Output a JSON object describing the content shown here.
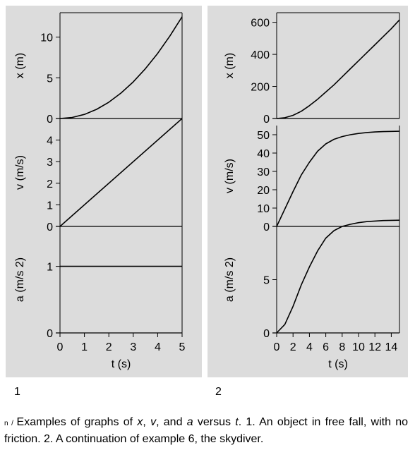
{
  "panels": [
    {
      "number": "1",
      "xlabel": "t (s)",
      "xticks": [
        0,
        1,
        2,
        3,
        4,
        5
      ],
      "xlim": [
        0,
        5
      ],
      "plots": [
        {
          "ylabel": "x (m)",
          "ylim": [
            0,
            13
          ],
          "yticks": [
            0,
            5,
            10
          ]
        },
        {
          "ylabel": "v (m/s)",
          "ylim": [
            0,
            5
          ],
          "yticks": [
            0,
            1,
            2,
            3,
            4
          ]
        },
        {
          "ylabel": "a (m/s 2)",
          "ylim": [
            0,
            1.6
          ],
          "yticks": [
            0,
            1
          ]
        }
      ]
    },
    {
      "number": "2",
      "xlabel": "t (s)",
      "xticks": [
        0,
        2,
        4,
        6,
        8,
        10,
        12,
        14
      ],
      "xlim": [
        0,
        15
      ],
      "plots": [
        {
          "ylabel": "x (m)",
          "ylim": [
            0,
            660
          ],
          "yticks": [
            0,
            200,
            400,
            600
          ]
        },
        {
          "ylabel": "v (m/s)",
          "ylim": [
            0,
            55
          ],
          "yticks": [
            0,
            10,
            20,
            30,
            40,
            50
          ]
        },
        {
          "ylabel": "a (m/s 2)",
          "ylim": [
            0,
            10
          ],
          "yticks": [
            0,
            5
          ]
        }
      ]
    }
  ],
  "caption": {
    "prefix": "n / ",
    "t1": "Examples of graphs of ",
    "v1": "x",
    "t2": ", ",
    "v2": "v",
    "t3": ", and ",
    "v3": "a",
    "t4": " versus ",
    "v4": "t",
    "t5": ". 1. An object in free fall, with no friction. 2. A continuation of example 6, the skydiver."
  },
  "chart_data": [
    {
      "type": "line",
      "panel": "1",
      "series": [
        {
          "name": "x (m)",
          "x": [
            0,
            0.5,
            1,
            1.5,
            2,
            2.5,
            3,
            3.5,
            4,
            4.5,
            5
          ],
          "y": [
            0,
            0.13,
            0.5,
            1.13,
            2,
            3.13,
            4.5,
            6.13,
            8,
            10.13,
            12.5
          ]
        },
        {
          "name": "v (m/s)",
          "x": [
            0,
            5
          ],
          "y": [
            0,
            5
          ]
        },
        {
          "name": "a (m/s 2)",
          "x": [
            0,
            5
          ],
          "y": [
            1,
            1
          ]
        }
      ]
    },
    {
      "type": "line",
      "panel": "2",
      "series": [
        {
          "name": "x (m)",
          "x": [
            0,
            1,
            2,
            3,
            4,
            5,
            6,
            7,
            8,
            9,
            10,
            11,
            12,
            13,
            14,
            15
          ],
          "y": [
            0,
            5,
            20,
            45,
            80,
            120,
            165,
            210,
            260,
            310,
            360,
            410,
            460,
            510,
            560,
            615
          ]
        },
        {
          "name": "v (m/s)",
          "x": [
            0,
            1,
            2,
            3,
            4,
            5,
            6,
            7,
            8,
            9,
            10,
            11,
            12,
            13,
            14,
            15
          ],
          "y": [
            0,
            9.5,
            19,
            28,
            35,
            41,
            45,
            47.5,
            49,
            50,
            50.7,
            51.2,
            51.5,
            51.7,
            51.8,
            51.9
          ]
        },
        {
          "name": "a (m/s 2)",
          "x": [
            0,
            1,
            2,
            3,
            4,
            5,
            6,
            7,
            8,
            9,
            10,
            11,
            12,
            13,
            14,
            15
          ],
          "y": [
            0,
            0.8,
            2.5,
            4.5,
            6.2,
            7.7,
            8.9,
            9.6,
            10,
            10.2,
            10.35,
            10.45,
            10.5,
            10.55,
            10.57,
            10.58
          ]
        }
      ]
    }
  ]
}
